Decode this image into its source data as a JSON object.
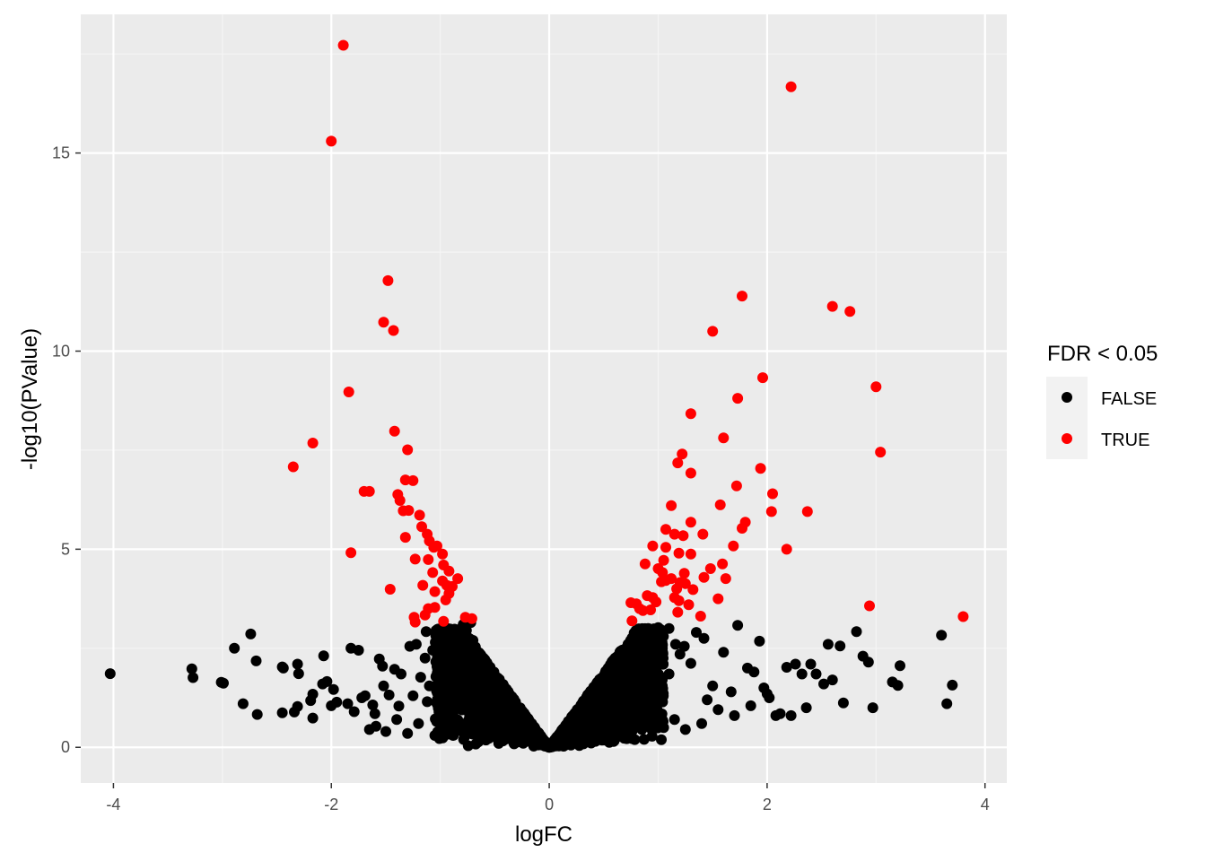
{
  "chart_data": {
    "type": "scatter",
    "title": "",
    "xlabel": "logFC",
    "ylabel": "-log10(PValue)",
    "xlim": [
      -4.3,
      4.2
    ],
    "ylim": [
      -0.9,
      18.5
    ],
    "x_ticks": [
      -4,
      -2,
      0,
      2,
      4
    ],
    "x_tick_labels": [
      "-4",
      "-2",
      "0",
      "2",
      "4"
    ],
    "y_ticks": [
      0,
      5,
      10,
      15
    ],
    "y_tick_labels": [
      "0",
      "5",
      "10",
      "15"
    ],
    "grid": true,
    "legend": {
      "title": "FDR < 0.05",
      "placement": "right",
      "entries": [
        {
          "label": "FALSE",
          "color": "#000000"
        },
        {
          "label": "TRUE",
          "color": "#ff0000"
        }
      ]
    },
    "colors": {
      "panel": "#ebebeb",
      "grid_major": "#ffffff",
      "grid_minor": "#f5f5f5",
      "false": "#000000",
      "true": "#ff0000"
    },
    "series": [
      {
        "name": "TRUE",
        "color": "#ff0000",
        "points": [
          [
            -1.89,
            17.72
          ],
          [
            -2.0,
            15.3
          ],
          [
            -1.48,
            11.78
          ],
          [
            -1.52,
            10.73
          ],
          [
            -1.43,
            10.52
          ],
          [
            -1.84,
            8.97
          ],
          [
            -2.17,
            7.68
          ],
          [
            -2.35,
            7.08
          ],
          [
            -1.42,
            7.98
          ],
          [
            -1.3,
            7.51
          ],
          [
            -1.65,
            6.46
          ],
          [
            -1.7,
            6.46
          ],
          [
            -1.32,
            6.75
          ],
          [
            -1.25,
            6.73
          ],
          [
            -1.39,
            6.38
          ],
          [
            -1.37,
            6.23
          ],
          [
            -1.34,
            5.97
          ],
          [
            -1.29,
            5.98
          ],
          [
            -1.19,
            5.86
          ],
          [
            -1.17,
            5.57
          ],
          [
            -1.32,
            5.3
          ],
          [
            -1.12,
            5.38
          ],
          [
            -1.1,
            5.21
          ],
          [
            -1.06,
            5.05
          ],
          [
            -1.03,
            5.08
          ],
          [
            -0.98,
            4.88
          ],
          [
            -1.82,
            4.91
          ],
          [
            -1.23,
            4.75
          ],
          [
            -1.11,
            4.74
          ],
          [
            -0.97,
            4.6
          ],
          [
            -0.92,
            4.45
          ],
          [
            -1.07,
            4.41
          ],
          [
            -0.84,
            4.26
          ],
          [
            -0.98,
            4.2
          ],
          [
            -0.94,
            4.09
          ],
          [
            -0.89,
            4.06
          ],
          [
            -1.16,
            4.09
          ],
          [
            -1.05,
            3.93
          ],
          [
            -0.92,
            3.88
          ],
          [
            -0.95,
            3.72
          ],
          [
            -1.46,
            3.99
          ],
          [
            -1.11,
            3.5
          ],
          [
            -1.05,
            3.53
          ],
          [
            -1.14,
            3.34
          ],
          [
            -1.24,
            3.28
          ],
          [
            -1.23,
            3.16
          ],
          [
            -0.97,
            3.18
          ],
          [
            -0.77,
            3.28
          ],
          [
            -0.71,
            3.25
          ],
          [
            2.22,
            16.67
          ],
          [
            1.77,
            11.39
          ],
          [
            2.6,
            11.13
          ],
          [
            2.76,
            11.0
          ],
          [
            1.5,
            10.5
          ],
          [
            1.96,
            9.33
          ],
          [
            3.0,
            9.1
          ],
          [
            1.73,
            8.81
          ],
          [
            1.3,
            8.42
          ],
          [
            1.6,
            7.81
          ],
          [
            3.04,
            7.45
          ],
          [
            1.22,
            7.4
          ],
          [
            1.18,
            7.18
          ],
          [
            1.94,
            7.04
          ],
          [
            1.3,
            6.92
          ],
          [
            1.72,
            6.6
          ],
          [
            2.05,
            6.4
          ],
          [
            1.12,
            6.1
          ],
          [
            1.57,
            6.12
          ],
          [
            2.04,
            5.95
          ],
          [
            2.37,
            5.95
          ],
          [
            1.3,
            5.68
          ],
          [
            1.8,
            5.68
          ],
          [
            1.77,
            5.53
          ],
          [
            1.07,
            5.5
          ],
          [
            1.15,
            5.38
          ],
          [
            1.23,
            5.34
          ],
          [
            1.41,
            5.38
          ],
          [
            0.95,
            5.08
          ],
          [
            1.07,
            5.05
          ],
          [
            1.69,
            5.08
          ],
          [
            2.18,
            5.0
          ],
          [
            1.19,
            4.9
          ],
          [
            1.3,
            4.88
          ],
          [
            1.05,
            4.72
          ],
          [
            0.88,
            4.63
          ],
          [
            1.59,
            4.63
          ],
          [
            1.0,
            4.51
          ],
          [
            1.48,
            4.51
          ],
          [
            1.04,
            4.41
          ],
          [
            1.24,
            4.39
          ],
          [
            1.12,
            4.26
          ],
          [
            1.42,
            4.29
          ],
          [
            1.62,
            4.26
          ],
          [
            1.03,
            4.18
          ],
          [
            1.07,
            4.21
          ],
          [
            1.2,
            4.16
          ],
          [
            1.25,
            4.13
          ],
          [
            1.17,
            4.0
          ],
          [
            1.32,
            3.98
          ],
          [
            0.9,
            3.83
          ],
          [
            0.95,
            3.78
          ],
          [
            1.15,
            3.78
          ],
          [
            1.55,
            3.75
          ],
          [
            0.75,
            3.65
          ],
          [
            0.8,
            3.62
          ],
          [
            0.98,
            3.67
          ],
          [
            1.19,
            3.7
          ],
          [
            1.28,
            3.6
          ],
          [
            0.83,
            3.5
          ],
          [
            0.93,
            3.47
          ],
          [
            1.18,
            3.41
          ],
          [
            0.86,
            3.45
          ],
          [
            1.39,
            3.31
          ],
          [
            2.94,
            3.57
          ],
          [
            3.8,
            3.3
          ],
          [
            0.76,
            3.19
          ]
        ]
      },
      {
        "name": "FALSE",
        "color": "#000000",
        "points": [
          [
            -4.03,
            1.86
          ],
          [
            -3.28,
            1.98
          ],
          [
            -3.27,
            1.76
          ],
          [
            -3.01,
            1.64
          ],
          [
            -2.99,
            1.62
          ],
          [
            -2.89,
            2.5
          ],
          [
            -2.81,
            1.1
          ],
          [
            -2.74,
            2.86
          ],
          [
            -2.69,
            2.18
          ],
          [
            -2.68,
            0.83
          ],
          [
            -2.45,
            2.03
          ],
          [
            -2.44,
            2.0
          ],
          [
            -2.45,
            0.87
          ],
          [
            -2.31,
            2.1
          ],
          [
            -2.3,
            1.86
          ],
          [
            -2.31,
            1.03
          ],
          [
            -2.34,
            0.89
          ],
          [
            -2.19,
            1.18
          ],
          [
            -2.17,
            1.34
          ],
          [
            -2.17,
            0.74
          ],
          [
            -2.08,
            1.6
          ],
          [
            -2.07,
            2.31
          ],
          [
            -2.04,
            1.66
          ],
          [
            -1.98,
            1.46
          ],
          [
            -1.95,
            1.14
          ],
          [
            -1.82,
            2.5
          ],
          [
            -1.75,
            2.45
          ],
          [
            -1.79,
            0.9
          ],
          [
            -1.69,
            1.3
          ],
          [
            -1.62,
            1.07
          ],
          [
            -1.59,
            0.53
          ],
          [
            -1.56,
            2.23
          ],
          [
            -1.53,
            2.05
          ],
          [
            -1.52,
            1.55
          ],
          [
            -1.47,
            1.32
          ],
          [
            -1.42,
            1.97
          ],
          [
            -1.38,
            1.04
          ],
          [
            -1.36,
            1.85
          ],
          [
            -1.28,
            2.55
          ],
          [
            -1.22,
            2.6
          ],
          [
            -1.18,
            1.77
          ],
          [
            -1.14,
            2.25
          ],
          [
            -1.13,
            2.92
          ],
          [
            -1.1,
            1.55
          ],
          [
            -1.07,
            2.45
          ],
          [
            -1.02,
            2.05
          ],
          [
            -0.98,
            2.75
          ],
          [
            -0.95,
            1.62
          ],
          [
            -0.92,
            2.38
          ],
          [
            -0.9,
            1.02
          ],
          [
            -0.85,
            2.85
          ],
          [
            -0.82,
            2.6
          ],
          [
            -0.79,
            3.1
          ],
          [
            -0.76,
            2.95
          ],
          [
            -0.74,
            2.2
          ],
          [
            -0.72,
            3.15
          ],
          [
            -0.7,
            2.7
          ],
          [
            -0.69,
            1.8
          ],
          [
            -0.66,
            2.4
          ],
          [
            -0.63,
            2.1
          ],
          [
            -0.6,
            1.6
          ],
          [
            -0.57,
            1.85
          ],
          [
            -0.55,
            1.2
          ],
          [
            -0.52,
            1.4
          ],
          [
            -0.48,
            0.9
          ],
          [
            -0.45,
            1.05
          ],
          [
            -0.42,
            0.75
          ],
          [
            -0.38,
            0.6
          ],
          [
            -0.35,
            0.7
          ],
          [
            -0.3,
            0.45
          ],
          [
            -0.27,
            0.5
          ],
          [
            -0.22,
            0.32
          ],
          [
            -0.18,
            0.25
          ],
          [
            -0.13,
            0.16
          ],
          [
            -0.08,
            0.08
          ],
          [
            -0.04,
            0.03
          ],
          [
            0.0,
            0.0
          ],
          [
            -1.5,
            0.4
          ],
          [
            -1.3,
            0.35
          ],
          [
            -1.05,
            0.3
          ],
          [
            -0.95,
            0.55
          ],
          [
            -0.88,
            0.3
          ],
          [
            -0.8,
            0.4
          ],
          [
            -1.2,
            0.6
          ],
          [
            -1.4,
            0.7
          ],
          [
            -1.65,
            0.45
          ],
          [
            -1.85,
            1.1
          ],
          [
            -2.0,
            1.05
          ],
          [
            -1.12,
            1.15
          ],
          [
            -1.25,
            1.3
          ],
          [
            -0.62,
            0.3
          ],
          [
            -0.7,
            0.5
          ],
          [
            -0.5,
            0.35
          ],
          [
            -1.6,
            0.85
          ],
          [
            -1.72,
            1.25
          ],
          [
            0.04,
            0.04
          ],
          [
            0.08,
            0.1
          ],
          [
            0.13,
            0.18
          ],
          [
            0.18,
            0.28
          ],
          [
            0.22,
            0.35
          ],
          [
            0.27,
            0.45
          ],
          [
            0.32,
            0.55
          ],
          [
            0.37,
            0.7
          ],
          [
            0.42,
            0.85
          ],
          [
            0.46,
            0.95
          ],
          [
            0.5,
            1.05
          ],
          [
            0.55,
            1.3
          ],
          [
            0.58,
            1.55
          ],
          [
            0.62,
            1.8
          ],
          [
            0.65,
            2.0
          ],
          [
            0.68,
            2.3
          ],
          [
            0.72,
            2.55
          ],
          [
            0.75,
            2.7
          ],
          [
            0.8,
            2.85
          ],
          [
            0.86,
            2.9
          ],
          [
            0.93,
            2.95
          ],
          [
            1.0,
            3.02
          ],
          [
            1.1,
            3.0
          ],
          [
            1.16,
            2.6
          ],
          [
            1.2,
            2.35
          ],
          [
            1.24,
            2.55
          ],
          [
            1.3,
            2.12
          ],
          [
            1.35,
            2.9
          ],
          [
            1.42,
            2.75
          ],
          [
            1.5,
            1.55
          ],
          [
            1.6,
            2.4
          ],
          [
            1.67,
            1.4
          ],
          [
            1.73,
            3.08
          ],
          [
            1.82,
            2.0
          ],
          [
            1.88,
            1.9
          ],
          [
            1.93,
            2.68
          ],
          [
            1.97,
            1.5
          ],
          [
            2.02,
            1.25
          ],
          [
            2.08,
            0.8
          ],
          [
            2.12,
            0.85
          ],
          [
            2.18,
            2.02
          ],
          [
            2.22,
            0.8
          ],
          [
            2.26,
            2.1
          ],
          [
            2.32,
            1.85
          ],
          [
            2.36,
            1.0
          ],
          [
            2.4,
            2.1
          ],
          [
            2.45,
            1.85
          ],
          [
            2.52,
            1.6
          ],
          [
            2.56,
            2.6
          ],
          [
            2.6,
            1.7
          ],
          [
            2.67,
            2.56
          ],
          [
            2.7,
            1.12
          ],
          [
            2.82,
            2.92
          ],
          [
            2.88,
            2.3
          ],
          [
            2.93,
            2.15
          ],
          [
            2.97,
            1.0
          ],
          [
            3.15,
            1.65
          ],
          [
            3.2,
            1.56
          ],
          [
            3.22,
            2.06
          ],
          [
            3.6,
            2.83
          ],
          [
            3.65,
            1.1
          ],
          [
            3.7,
            1.57
          ],
          [
            0.55,
            0.3
          ],
          [
            0.65,
            0.4
          ],
          [
            0.75,
            0.5
          ],
          [
            0.85,
            0.45
          ],
          [
            0.95,
            0.6
          ],
          [
            1.05,
            0.5
          ],
          [
            1.15,
            0.7
          ],
          [
            1.25,
            0.45
          ],
          [
            1.4,
            0.6
          ],
          [
            1.55,
            0.95
          ],
          [
            1.7,
            0.8
          ],
          [
            1.85,
            1.05
          ],
          [
            2.0,
            1.35
          ],
          [
            0.7,
            1.4
          ],
          [
            0.8,
            1.7
          ],
          [
            0.9,
            1.9
          ],
          [
            1.0,
            1.6
          ],
          [
            1.1,
            1.85
          ],
          [
            0.6,
            0.95
          ],
          [
            0.78,
            2.05
          ],
          [
            0.88,
            2.3
          ],
          [
            0.98,
            2.45
          ],
          [
            1.45,
            1.2
          ]
        ]
      }
    ]
  }
}
